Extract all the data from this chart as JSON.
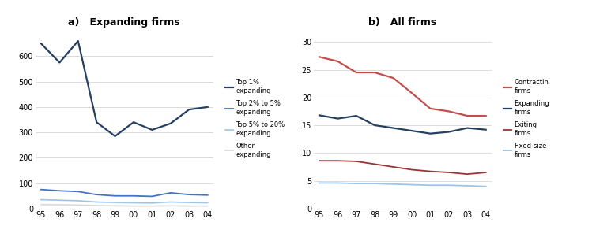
{
  "years": [
    "95",
    "96",
    "97",
    "98",
    "99",
    "00",
    "01",
    "02",
    "03",
    "04"
  ],
  "panel_a": {
    "title": "a)   Expanding firms",
    "ylim": [
      0,
      700
    ],
    "yticks": [
      0,
      100,
      200,
      300,
      400,
      500,
      600
    ],
    "series": [
      {
        "key": "top1",
        "label": "Top 1%\nexpanding",
        "color": "#243F60",
        "linewidth": 1.6,
        "values": [
          650,
          575,
          660,
          340,
          285,
          340,
          310,
          335,
          390,
          400
        ]
      },
      {
        "key": "top2to5",
        "label": "Top 2% to 5%\nexpanding",
        "color": "#4472C4",
        "linewidth": 1.3,
        "values": [
          75,
          70,
          67,
          55,
          50,
          50,
          48,
          62,
          55,
          53
        ]
      },
      {
        "key": "top5to20",
        "label": "Top 5% to 20%\nexpanding",
        "color": "#9DC3E6",
        "linewidth": 1.2,
        "values": [
          35,
          33,
          31,
          26,
          24,
          23,
          22,
          26,
          24,
          23
        ]
      },
      {
        "key": "other",
        "label": "Other\nexpanding",
        "color": "#D9D9D9",
        "linewidth": 1.2,
        "values": [
          16,
          15,
          14,
          12,
          11,
          10,
          10,
          11,
          10,
          10
        ]
      }
    ]
  },
  "panel_b": {
    "title": "b)   All firms",
    "ylim": [
      0,
      32
    ],
    "yticks": [
      0,
      5,
      10,
      15,
      20,
      25,
      30
    ],
    "series": [
      {
        "key": "contracting",
        "label": "Contractin\nfirms",
        "color": "#C0504D",
        "linewidth": 1.6,
        "values": [
          27.3,
          26.5,
          24.5,
          24.5,
          23.5,
          20.8,
          18.0,
          17.5,
          16.7,
          16.7
        ]
      },
      {
        "key": "expanding",
        "label": "Expanding\nfirms",
        "color": "#243F60",
        "linewidth": 1.6,
        "values": [
          16.8,
          16.2,
          16.7,
          15.0,
          14.5,
          14.0,
          13.5,
          13.8,
          14.5,
          14.2
        ]
      },
      {
        "key": "exiting",
        "label": "Exiting\nfirms",
        "color": "#943634",
        "linewidth": 1.3,
        "values": [
          8.6,
          8.6,
          8.5,
          8.0,
          7.5,
          7.0,
          6.7,
          6.5,
          6.2,
          6.5
        ]
      },
      {
        "key": "fixed",
        "label": "Fixed-size\nfirms",
        "color": "#9DC3E6",
        "linewidth": 1.3,
        "values": [
          4.6,
          4.6,
          4.5,
          4.5,
          4.4,
          4.3,
          4.2,
          4.2,
          4.1,
          4.0
        ]
      }
    ]
  }
}
